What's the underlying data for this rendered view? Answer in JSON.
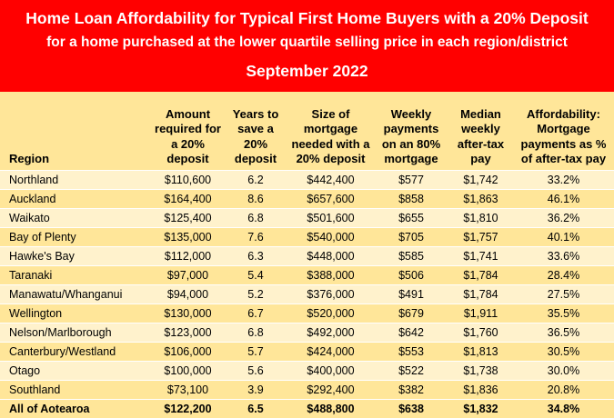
{
  "header": {
    "title": "Home Loan Affordability for Typical First Home Buyers with a 20% Deposit",
    "subtitle": "for a home purchased at the lower quartile selling price in each region/district",
    "date": "September 2022"
  },
  "columns": [
    "Region",
    "Amount required for a 20% deposit",
    "Years to save a 20% deposit",
    "Size of mortgage needed with a 20% deposit",
    "Weekly payments on an 80% mortgage",
    "Median weekly after-tax pay",
    "Affordability: Mortgage payments as % of after-tax pay"
  ],
  "rows": [
    [
      "Northland",
      "$110,600",
      "6.2",
      "$442,400",
      "$577",
      "$1,742",
      "33.2%"
    ],
    [
      "Auckland",
      "$164,400",
      "8.6",
      "$657,600",
      "$858",
      "$1,863",
      "46.1%"
    ],
    [
      "Waikato",
      "$125,400",
      "6.8",
      "$501,600",
      "$655",
      "$1,810",
      "36.2%"
    ],
    [
      "Bay of Plenty",
      "$135,000",
      "7.6",
      "$540,000",
      "$705",
      "$1,757",
      "40.1%"
    ],
    [
      "Hawke's Bay",
      "$112,000",
      "6.3",
      "$448,000",
      "$585",
      "$1,741",
      "33.6%"
    ],
    [
      "Taranaki",
      "$97,000",
      "5.4",
      "$388,000",
      "$506",
      "$1,784",
      "28.4%"
    ],
    [
      "Manawatu/Whanganui",
      "$94,000",
      "5.2",
      "$376,000",
      "$491",
      "$1,784",
      "27.5%"
    ],
    [
      "Wellington",
      "$130,000",
      "6.7",
      "$520,000",
      "$679",
      "$1,911",
      "35.5%"
    ],
    [
      "Nelson/Marlborough",
      "$123,000",
      "6.8",
      "$492,000",
      "$642",
      "$1,760",
      "36.5%"
    ],
    [
      "Canterbury/Westland",
      "$106,000",
      "5.7",
      "$424,000",
      "$553",
      "$1,813",
      "30.5%"
    ],
    [
      "Otago",
      "$100,000",
      "5.6",
      "$400,000",
      "$522",
      "$1,738",
      "30.0%"
    ],
    [
      "Southland",
      "$73,100",
      "3.9",
      "$292,400",
      "$382",
      "$1,836",
      "20.8%"
    ]
  ],
  "total": [
    "All of Aotearoa",
    "$122,200",
    "6.5",
    "$488,800",
    "$638",
    "$1,832",
    "34.8%"
  ],
  "colors": {
    "banner_bg": "#ff0000",
    "banner_text": "#ffffff",
    "header_bg": "#ffe699",
    "row_light": "#fff2cc",
    "row_dark": "#ffe699"
  }
}
